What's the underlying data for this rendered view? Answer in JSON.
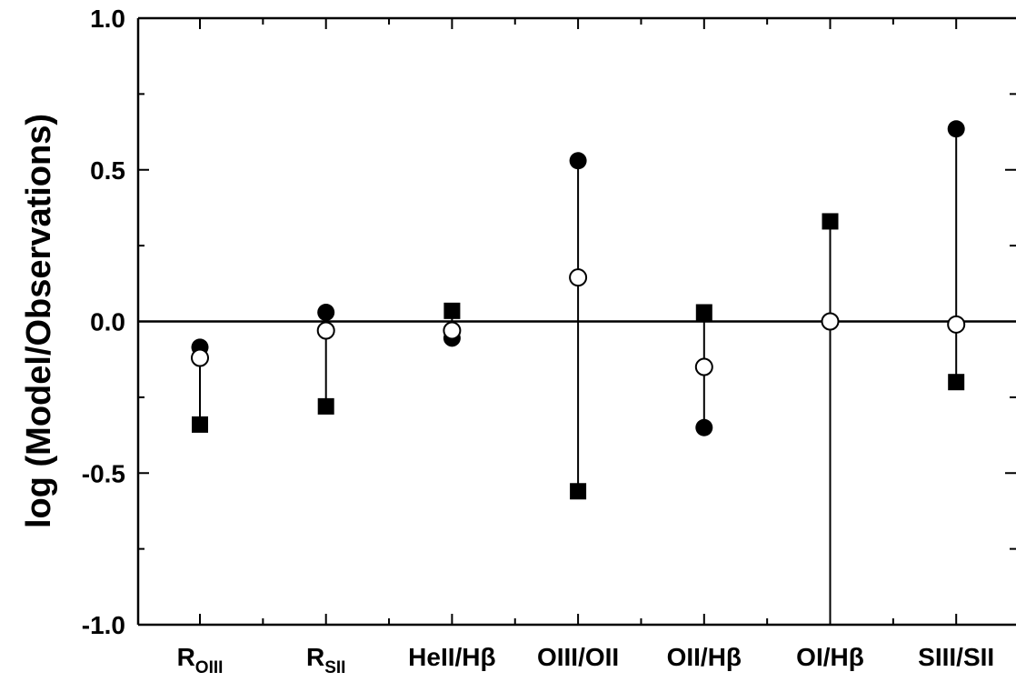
{
  "chart_data": {
    "type": "scatter",
    "title": "",
    "xlabel": "",
    "ylabel": "log (Model/Observations)",
    "ylim": [
      -1.0,
      1.0
    ],
    "yticks_major": [
      -1.0,
      -0.5,
      0.0,
      0.5,
      1.0
    ],
    "yticks_major_labels": [
      "-1.0",
      "-0.5",
      "0.0",
      "0.5",
      "1.0"
    ],
    "yticks_minor": [
      -0.75,
      -0.25,
      0.25,
      0.75
    ],
    "zero_line": 0.0,
    "grid": false,
    "legend": "none",
    "categories": [
      {
        "base": "R",
        "sub": "OIII"
      },
      {
        "base": "R",
        "sub": "SII"
      },
      {
        "base": "HeII/Hβ",
        "sub": ""
      },
      {
        "base": "OIII/OII",
        "sub": ""
      },
      {
        "base": "OII/Hβ",
        "sub": ""
      },
      {
        "base": "OI/Hβ",
        "sub": ""
      },
      {
        "base": "SIII/SII",
        "sub": ""
      }
    ],
    "series": [
      {
        "marker": "filled-circle",
        "values": [
          -0.085,
          0.03,
          -0.055,
          0.53,
          -0.35,
          null,
          0.635
        ]
      },
      {
        "marker": "open-circle",
        "values": [
          -0.12,
          -0.03,
          -0.03,
          0.145,
          -0.15,
          0.0,
          -0.01
        ]
      },
      {
        "marker": "filled-square",
        "values": [
          -0.34,
          -0.28,
          0.035,
          -0.56,
          0.03,
          0.33,
          -0.2
        ]
      }
    ],
    "error_bars": [
      {
        "low": -0.34,
        "high": -0.085
      },
      {
        "low": -0.28,
        "high": 0.03
      },
      {
        "low": -0.055,
        "high": 0.035
      },
      {
        "low": -0.56,
        "high": 0.53
      },
      {
        "low": -0.35,
        "high": 0.03
      },
      {
        "low": -1.0,
        "high": 0.33
      },
      {
        "low": -0.2,
        "high": 0.635
      }
    ]
  }
}
